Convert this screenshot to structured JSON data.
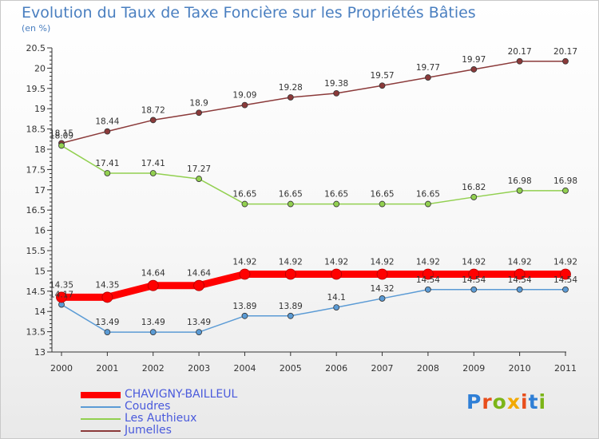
{
  "header": {
    "title": "Evolution du Taux de Taxe Foncière sur les Propriétés Bâties",
    "subtitle": "(en %)"
  },
  "logo": {
    "text": "Proxiti"
  },
  "chart_data": {
    "type": "line",
    "title": "Evolution du Taux de Taxe Foncière sur les Propriétés Bâties",
    "ylabel": "(en %)",
    "xlabel": "",
    "x": [
      "2000",
      "2001",
      "2002",
      "2003",
      "2004",
      "2005",
      "2006",
      "2007",
      "2008",
      "2009",
      "2010",
      "2011"
    ],
    "ylim": [
      13,
      20.5
    ],
    "yticks": [
      "13",
      "13.5",
      "14",
      "14.5",
      "15",
      "15.5",
      "16",
      "16.5",
      "17",
      "17.5",
      "18",
      "18.5",
      "19",
      "19.5",
      "20",
      "20.5"
    ],
    "grid": false,
    "legend_position": "bottom-left",
    "series": [
      {
        "name": "CHAVIGNY-BAILLEUL",
        "color": "#ff0000",
        "values": [
          14.35,
          14.35,
          14.64,
          14.64,
          14.92,
          14.92,
          14.92,
          14.92,
          14.92,
          14.92,
          14.92,
          14.92
        ],
        "labels": [
          "14.35",
          "14.35",
          "14.64",
          "14.64",
          "14.92",
          "14.92",
          "14.92",
          "14.92",
          "14.92",
          "14.92",
          "14.92",
          "14.92"
        ]
      },
      {
        "name": "Coudres",
        "color": "#5b9bd5",
        "values": [
          14.17,
          13.49,
          13.49,
          13.49,
          13.89,
          13.89,
          14.1,
          14.32,
          14.54,
          14.54,
          14.54,
          14.54
        ],
        "labels": [
          "14.17",
          "13.49",
          "13.49",
          "13.49",
          "13.89",
          "13.89",
          "14.1",
          "14.32",
          "14.54",
          "14.54",
          "14.54",
          "14.54"
        ]
      },
      {
        "name": "Les Authieux",
        "color": "#92d050",
        "values": [
          18.09,
          17.41,
          17.41,
          17.27,
          16.65,
          16.65,
          16.65,
          16.65,
          16.65,
          16.82,
          16.98,
          16.98
        ],
        "labels": [
          "18.09",
          "17.41",
          "17.41",
          "17.27",
          "16.65",
          "16.65",
          "16.65",
          "16.65",
          "16.65",
          "16.82",
          "16.98",
          "16.98"
        ]
      },
      {
        "name": "Jumelles",
        "color": "#8b3a3a",
        "values": [
          18.15,
          18.44,
          18.72,
          18.9,
          19.09,
          19.28,
          19.38,
          19.57,
          19.77,
          19.97,
          20.17,
          20.17
        ],
        "labels": [
          "18.15",
          "18.44",
          "18.72",
          "18.9",
          "19.09",
          "19.28",
          "19.38",
          "19.57",
          "19.77",
          "19.97",
          "20.17",
          "20.17"
        ]
      }
    ]
  }
}
